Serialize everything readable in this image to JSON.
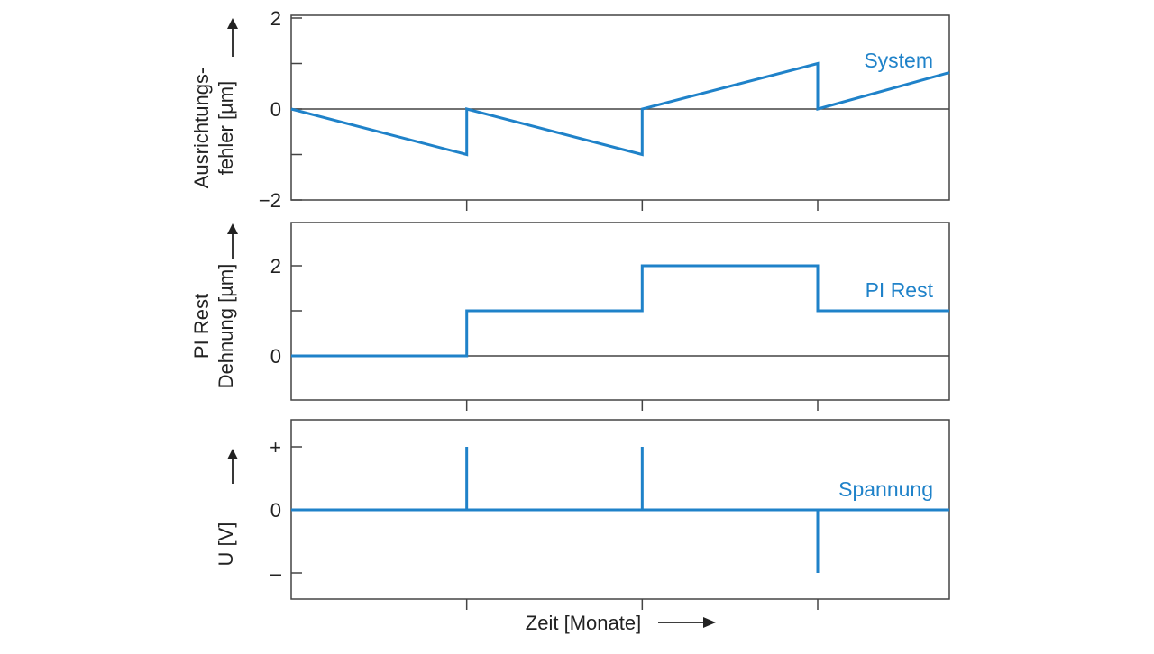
{
  "chart_data": {
    "type": "line",
    "colors": {
      "series": "#1f82c9",
      "axis": "#444444"
    },
    "xlabel": "Zeit [Monate]",
    "x_ticks": [
      1,
      2,
      3
    ],
    "xlim": [
      0,
      3.75
    ],
    "panels": [
      {
        "id": "system",
        "ylabel_lines": [
          "Ausrichtungs-",
          "fehler [µm]"
        ],
        "ylim": [
          -2,
          2
        ],
        "ticks": [
          {
            "value": 2,
            "label": "2"
          },
          {
            "value": 1,
            "label": ""
          },
          {
            "value": 0,
            "label": "0"
          },
          {
            "value": -1,
            "label": ""
          },
          {
            "value": -2,
            "label": "−2"
          }
        ],
        "series": {
          "name": "System",
          "x": [
            0,
            1,
            1,
            2,
            2,
            3,
            3,
            3.75
          ],
          "y": [
            0,
            -1,
            0,
            -1,
            0,
            1,
            0,
            0.8
          ]
        }
      },
      {
        "id": "pi_rest",
        "ylabel_lines": [
          "PI Rest",
          "Dehnung [µm]"
        ],
        "ylim": [
          -1,
          3
        ],
        "ticks": [
          {
            "value": 2,
            "label": "2"
          },
          {
            "value": 1,
            "label": ""
          },
          {
            "value": 0,
            "label": "0"
          }
        ],
        "series": {
          "name": "PI Rest",
          "x": [
            0,
            1,
            1,
            2,
            2,
            3,
            3,
            3.75
          ],
          "y": [
            0,
            0,
            1,
            1,
            2,
            2,
            1,
            1
          ]
        }
      },
      {
        "id": "spannung",
        "ylabel_lines": [
          "U [V]"
        ],
        "ylim": [
          -1.4,
          1.4
        ],
        "ticks": [
          {
            "value": 1,
            "label": "+"
          },
          {
            "value": 0,
            "label": "0"
          },
          {
            "value": -1,
            "label": "–"
          }
        ],
        "series": {
          "name": "Spannung",
          "baseline": 0,
          "pulses": [
            {
              "x": 1,
              "y": 1
            },
            {
              "x": 2,
              "y": 1
            },
            {
              "x": 3,
              "y": -1
            }
          ]
        }
      }
    ]
  }
}
